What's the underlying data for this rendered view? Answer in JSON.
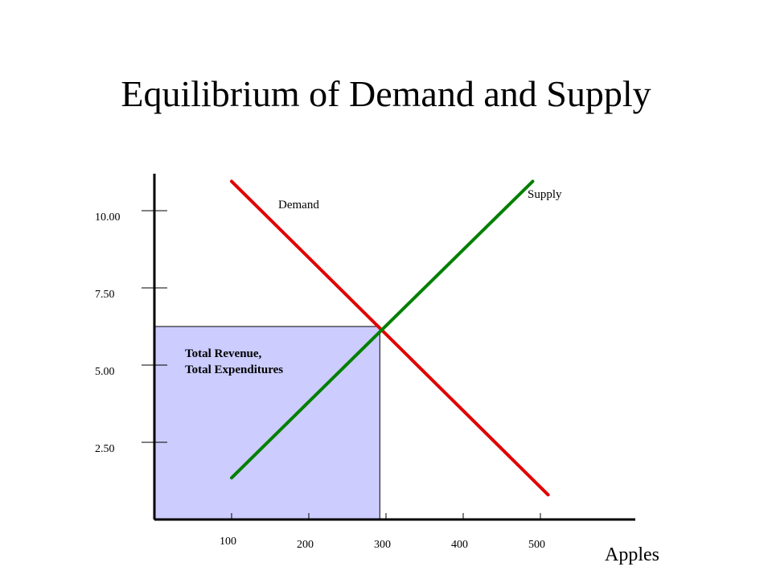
{
  "chart_data": {
    "type": "line",
    "title": "Equilibrium of Demand and Supply",
    "xlabel": "Apples",
    "ylabel": "",
    "xlim": [
      0,
      600
    ],
    "ylim": [
      0,
      11.25
    ],
    "x_ticks": [
      100,
      200,
      300,
      400,
      500
    ],
    "x_tick_labels": [
      "100",
      "200",
      "300",
      "400",
      "500"
    ],
    "y_ticks": [
      2.5,
      5.0,
      7.5,
      10.0
    ],
    "y_tick_labels": [
      "2.50",
      "5.00",
      "7.50",
      "10.00"
    ],
    "grid": false,
    "series": [
      {
        "name": "Demand",
        "color": "#e00000",
        "x": [
          100,
          510
        ],
        "y": [
          10.95,
          0.8
        ]
      },
      {
        "name": "Supply",
        "color": "#008000",
        "x": [
          100,
          490
        ],
        "y": [
          1.35,
          10.95
        ]
      }
    ],
    "regions": [
      {
        "label_lines": [
          "Total Revenue,",
          "Total Expenditures"
        ],
        "x": [
          0,
          292
        ],
        "y": [
          0,
          6.25
        ],
        "fill": "#ccccff"
      }
    ]
  }
}
